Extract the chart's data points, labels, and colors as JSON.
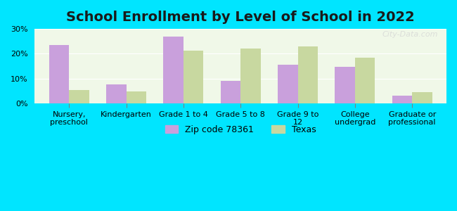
{
  "title": "School Enrollment by Level of School in 2022",
  "categories": [
    "Nursery,\npreschool",
    "Kindergarten",
    "Grade 1 to 4",
    "Grade 5 to 8",
    "Grade 9 to\n12",
    "College\nundergrad",
    "Graduate or\nprofessional"
  ],
  "zip_values": [
    23.5,
    7.8,
    26.8,
    9.0,
    15.5,
    14.8,
    3.2
  ],
  "texas_values": [
    5.3,
    4.8,
    21.2,
    22.2,
    23.0,
    18.5,
    4.7
  ],
  "zip_color": "#c9a0dc",
  "texas_color": "#c8d8a0",
  "background_outer": "#00e5ff",
  "background_inner": "#f0f8e8",
  "ylim": [
    0,
    30
  ],
  "yticks": [
    0,
    10,
    20,
    30
  ],
  "yticklabels": [
    "0%",
    "10%",
    "20%",
    "30%"
  ],
  "legend_zip_label": "Zip code 78361",
  "legend_texas_label": "Texas",
  "bar_width": 0.35,
  "title_fontsize": 14,
  "tick_fontsize": 8,
  "legend_fontsize": 9,
  "watermark": "City-Data.com"
}
